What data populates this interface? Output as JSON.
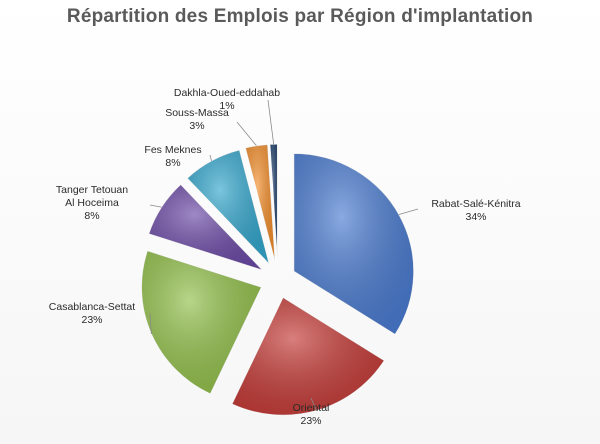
{
  "chart_data": {
    "type": "pie",
    "title": "Répartition des Emplois par Région d'implantation",
    "slices": [
      {
        "name": "Rabat-Salé-Kénitra",
        "value": 34,
        "pct_label": "34%",
        "color": "#4a7bd0"
      },
      {
        "name": "Oriental",
        "value": 23,
        "pct_label": "23%",
        "color": "#c43a36"
      },
      {
        "name": "Casablanca-Settat",
        "value": 23,
        "pct_label": "23%",
        "color": "#92c04a"
      },
      {
        "name": "Tanger Tetouan\nAl Hoceima",
        "value": 8,
        "pct_label": "8%",
        "color": "#6c4aa6"
      },
      {
        "name": "Fes Meknes",
        "value": 8,
        "pct_label": "8%",
        "color": "#33a6cc"
      },
      {
        "name": "Souss-Massa",
        "value": 3,
        "pct_label": "3%",
        "color": "#f28d2a"
      },
      {
        "name": "Dakhla-Oued-eddahab",
        "value": 1,
        "pct_label": "1%",
        "color": "#1f3f6b"
      }
    ]
  }
}
